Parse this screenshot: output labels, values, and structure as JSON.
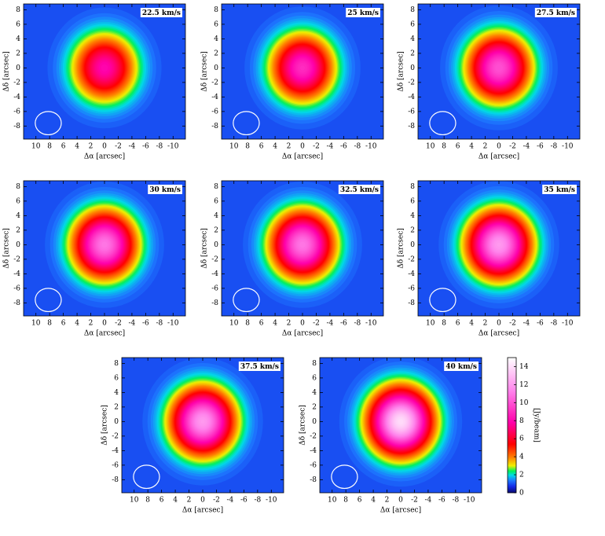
{
  "chart_data": [
    {
      "type": "heatmap",
      "label": "22.5 km/s",
      "peak": 7,
      "xlabel": "Δα [arcsec]",
      "ylabel": "Δδ [arcsec]",
      "xlim": [
        11.8,
        -11.8
      ],
      "ylim": [
        -9.8,
        8.8
      ],
      "xticks": [
        10,
        8,
        6,
        4,
        2,
        0,
        -2,
        -4,
        -6,
        -8,
        -10
      ],
      "yticks": [
        -8,
        -6,
        -4,
        -2,
        0,
        2,
        4,
        6,
        8
      ]
    },
    {
      "type": "heatmap",
      "label": "25 km/s",
      "peak": 8,
      "xlabel": "Δα [arcsec]",
      "ylabel": "Δδ [arcsec]",
      "xlim": [
        11.8,
        -11.8
      ],
      "ylim": [
        -9.8,
        8.8
      ],
      "xticks": [
        10,
        8,
        6,
        4,
        2,
        0,
        -2,
        -4,
        -6,
        -8,
        -10
      ],
      "yticks": [
        -8,
        -6,
        -4,
        -2,
        0,
        2,
        4,
        6,
        8
      ]
    },
    {
      "type": "heatmap",
      "label": "27.5 km/s",
      "peak": 9,
      "xlabel": "Δα [arcsec]",
      "ylabel": "Δδ [arcsec]",
      "xlim": [
        11.8,
        -11.8
      ],
      "ylim": [
        -9.8,
        8.8
      ],
      "xticks": [
        10,
        8,
        6,
        4,
        2,
        0,
        -2,
        -4,
        -6,
        -8,
        -10
      ],
      "yticks": [
        -8,
        -6,
        -4,
        -2,
        0,
        2,
        4,
        6,
        8
      ]
    },
    {
      "type": "heatmap",
      "label": "30 km/s",
      "peak": 10,
      "xlabel": "Δα [arcsec]",
      "ylabel": "Δδ [arcsec]",
      "xlim": [
        11.8,
        -11.8
      ],
      "ylim": [
        -9.8,
        8.8
      ],
      "xticks": [
        10,
        8,
        6,
        4,
        2,
        0,
        -2,
        -4,
        -6,
        -8,
        -10
      ],
      "yticks": [
        -8,
        -6,
        -4,
        -2,
        0,
        2,
        4,
        6,
        8
      ]
    },
    {
      "type": "heatmap",
      "label": "32.5 km/s",
      "peak": 10,
      "xlabel": "Δα [arcsec]",
      "ylabel": "Δδ [arcsec]",
      "xlim": [
        11.8,
        -11.8
      ],
      "ylim": [
        -9.8,
        8.8
      ],
      "xticks": [
        10,
        8,
        6,
        4,
        2,
        0,
        -2,
        -4,
        -6,
        -8,
        -10
      ],
      "yticks": [
        -8,
        -6,
        -4,
        -2,
        0,
        2,
        4,
        6,
        8
      ]
    },
    {
      "type": "heatmap",
      "label": "35 km/s",
      "peak": 11,
      "xlabel": "Δα [arcsec]",
      "ylabel": "Δδ [arcsec]",
      "xlim": [
        11.8,
        -11.8
      ],
      "ylim": [
        -9.8,
        8.8
      ],
      "xticks": [
        10,
        8,
        6,
        4,
        2,
        0,
        -2,
        -4,
        -6,
        -8,
        -10
      ],
      "yticks": [
        -8,
        -6,
        -4,
        -2,
        0,
        2,
        4,
        6,
        8
      ]
    },
    {
      "type": "heatmap",
      "label": "37.5 km/s",
      "peak": 11,
      "xlabel": "Δα [arcsec]",
      "ylabel": "Δδ [arcsec]",
      "xlim": [
        11.8,
        -11.8
      ],
      "ylim": [
        -9.8,
        8.8
      ],
      "xticks": [
        10,
        8,
        6,
        4,
        2,
        0,
        -2,
        -4,
        -6,
        -8,
        -10
      ],
      "yticks": [
        -8,
        -6,
        -4,
        -2,
        0,
        2,
        4,
        6,
        8
      ]
    },
    {
      "type": "heatmap",
      "label": "40 km/s",
      "peak": 13,
      "xlabel": "Δα [arcsec]",
      "ylabel": "Δδ [arcsec]",
      "xlim": [
        11.8,
        -11.8
      ],
      "ylim": [
        -9.8,
        8.8
      ],
      "xticks": [
        10,
        8,
        6,
        4,
        2,
        0,
        -2,
        -4,
        -6,
        -8,
        -10
      ],
      "yticks": [
        -8,
        -6,
        -4,
        -2,
        0,
        2,
        4,
        6,
        8
      ]
    },
    {
      "type": "colorbar",
      "label": "[Jy/beam]",
      "ylim": [
        0,
        15
      ],
      "yticks": [
        0,
        2,
        4,
        6,
        8,
        10,
        12,
        14
      ]
    }
  ]
}
